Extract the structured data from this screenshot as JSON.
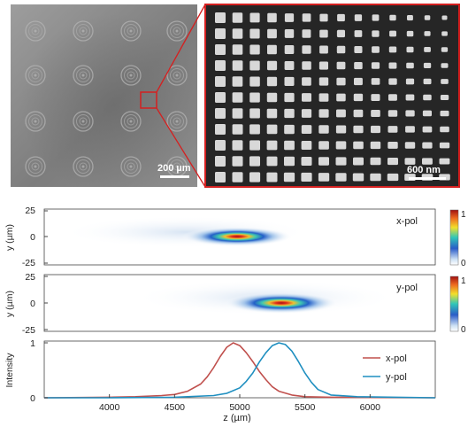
{
  "micrograph": {
    "scale_label": "200 µm",
    "zoom_color": "#d42020"
  },
  "sem": {
    "scale_label": "600 nm"
  },
  "panels": {
    "xpol_label": "x-pol",
    "ypol_label": "y-pol",
    "y_axis_label": "y (µm)",
    "y_ticks": [
      "25",
      "0",
      "-25"
    ],
    "colorbar_ticks": [
      "1",
      "0"
    ]
  },
  "chart_data": {
    "type": "line",
    "xlabel": "z (µm)",
    "ylabel": "Intensity",
    "xlim": [
      3500,
      6500
    ],
    "ylim": [
      0,
      1
    ],
    "x_ticks": [
      4000,
      4500,
      5000,
      5500,
      6000
    ],
    "y_ticks": [
      0,
      1
    ],
    "legend_position": "right",
    "series": [
      {
        "name": "x-pol",
        "color": "#c0504d",
        "x": [
          3500,
          3800,
          4000,
          4200,
          4400,
          4500,
          4600,
          4700,
          4750,
          4800,
          4850,
          4900,
          4950,
          5000,
          5050,
          5100,
          5150,
          5200,
          5250,
          5300,
          5400,
          5500,
          5700,
          6000,
          6500
        ],
        "y": [
          0.0,
          0.005,
          0.01,
          0.02,
          0.04,
          0.06,
          0.12,
          0.25,
          0.38,
          0.55,
          0.75,
          0.92,
          1.0,
          0.95,
          0.82,
          0.66,
          0.48,
          0.33,
          0.2,
          0.12,
          0.05,
          0.02,
          0.01,
          0.005,
          0.0
        ]
      },
      {
        "name": "y-pol",
        "color": "#1f8fc0",
        "x": [
          3500,
          4000,
          4500,
          4800,
          4900,
          5000,
          5050,
          5100,
          5150,
          5200,
          5250,
          5300,
          5350,
          5400,
          5450,
          5500,
          5550,
          5600,
          5700,
          5900,
          6200,
          6500
        ],
        "y": [
          0.0,
          0.0,
          0.01,
          0.04,
          0.08,
          0.18,
          0.3,
          0.45,
          0.65,
          0.82,
          0.95,
          1.0,
          0.97,
          0.85,
          0.66,
          0.45,
          0.28,
          0.15,
          0.05,
          0.02,
          0.01,
          0.0
        ]
      }
    ]
  }
}
